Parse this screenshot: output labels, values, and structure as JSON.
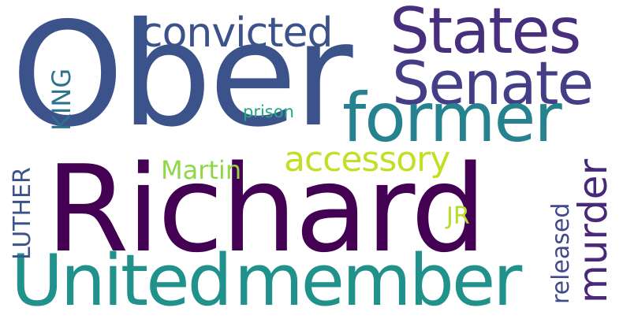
{
  "words": {
    "ober": {
      "text": "Ober",
      "color": "#3b528b"
    },
    "richard": {
      "text": "Richard",
      "color": "#440154"
    },
    "united": {
      "text": "United",
      "color": "#21918c"
    },
    "member": {
      "text": "member",
      "color": "#21918c"
    },
    "states": {
      "text": "States",
      "color": "#472f7d"
    },
    "senate": {
      "text": "Senate",
      "color": "#433e85"
    },
    "former": {
      "text": "former",
      "color": "#26828e"
    },
    "convicted": {
      "text": "convicted",
      "color": "#3b528b"
    },
    "accessory": {
      "text": "accessory",
      "color": "#c2df23"
    },
    "martin": {
      "text": "Martin",
      "color": "#8fd744"
    },
    "murder": {
      "text": "murder",
      "color": "#482878"
    },
    "released": {
      "text": "released",
      "color": "#3e4a89"
    },
    "king": {
      "text": "KING",
      "color": "#2c728e"
    },
    "luther": {
      "text": "LUTHER",
      "color": "#3b528b"
    },
    "jr": {
      "text": "JR",
      "color": "#b5de2b"
    },
    "prison": {
      "text": "prison",
      "color": "#22a884"
    }
  }
}
